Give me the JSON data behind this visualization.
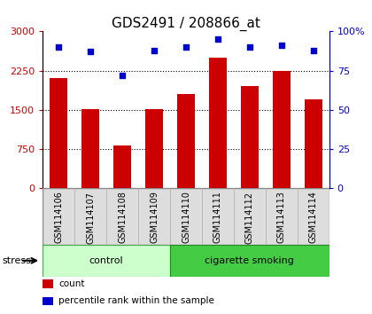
{
  "title": "GDS2491 / 208866_at",
  "samples": [
    "GSM114106",
    "GSM114107",
    "GSM114108",
    "GSM114109",
    "GSM114110",
    "GSM114111",
    "GSM114112",
    "GSM114113",
    "GSM114114"
  ],
  "counts": [
    2100,
    1520,
    820,
    1520,
    1800,
    2500,
    1950,
    2250,
    1700
  ],
  "percentiles": [
    90,
    87,
    72,
    88,
    90,
    95,
    90,
    91,
    88
  ],
  "bar_color": "#cc0000",
  "dot_color": "#0000cc",
  "ylim_left": [
    0,
    3000
  ],
  "ylim_right": [
    0,
    100
  ],
  "yticks_left": [
    0,
    750,
    1500,
    2250,
    3000
  ],
  "yticks_right": [
    0,
    25,
    50,
    75,
    100
  ],
  "ytick_labels_right": [
    "0",
    "25",
    "50",
    "75",
    "100%"
  ],
  "groups": [
    {
      "label": "control",
      "start": 0,
      "end": 4,
      "color": "#ccffcc",
      "edge_color": "#44aa44"
    },
    {
      "label": "cigarette smoking",
      "start": 4,
      "end": 9,
      "color": "#44cc44",
      "edge_color": "#228822"
    }
  ],
  "stress_label": "stress",
  "legend_items": [
    {
      "color": "#cc0000",
      "label": "count"
    },
    {
      "color": "#0000cc",
      "label": "percentile rank within the sample"
    }
  ],
  "title_fontsize": 11,
  "tick_fontsize": 8,
  "label_fontsize": 7,
  "bar_width": 0.55,
  "xlim": [
    -0.5,
    8.5
  ]
}
